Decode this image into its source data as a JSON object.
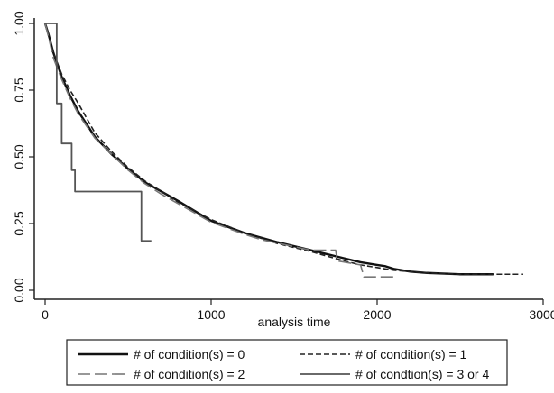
{
  "chart_data": {
    "type": "line",
    "title": "",
    "xlabel": "analysis time",
    "ylabel": "",
    "xlim": [
      0,
      3000
    ],
    "ylim": [
      0,
      1
    ],
    "grid": false,
    "legend_position": "bottom",
    "x_ticks": [
      "0",
      "1000",
      "2000",
      "3000"
    ],
    "y_ticks": [
      "0.00",
      "0.25",
      "0.50",
      "0.75",
      "1.00"
    ],
    "series": [
      {
        "name": "# of condition(s) = 0",
        "color": "#111111",
        "style": "solid-thick",
        "x": [
          0,
          20,
          50,
          100,
          150,
          200,
          300,
          400,
          500,
          600,
          700,
          800,
          1000,
          1200,
          1400,
          1600,
          1700,
          1800,
          1900,
          2000,
          2050,
          2100,
          2150,
          2200,
          2300,
          2500,
          2700
        ],
        "y": [
          1.0,
          0.96,
          0.89,
          0.8,
          0.73,
          0.67,
          0.575,
          0.51,
          0.455,
          0.405,
          0.37,
          0.335,
          0.26,
          0.215,
          0.18,
          0.15,
          0.135,
          0.12,
          0.105,
          0.095,
          0.09,
          0.08,
          0.075,
          0.07,
          0.065,
          0.06,
          0.06
        ]
      },
      {
        "name": "# of condition(s) = 1",
        "color": "#222222",
        "style": "short-dash",
        "x": [
          0,
          20,
          50,
          100,
          150,
          200,
          300,
          400,
          500,
          600,
          700,
          800,
          1000,
          1200,
          1400,
          1600,
          1800,
          1900,
          2000,
          2100,
          2200,
          2300,
          2500,
          2700,
          2880
        ],
        "y": [
          1.0,
          0.96,
          0.89,
          0.81,
          0.75,
          0.7,
          0.59,
          0.52,
          0.46,
          0.41,
          0.37,
          0.33,
          0.265,
          0.215,
          0.175,
          0.145,
          0.11,
          0.095,
          0.085,
          0.075,
          0.07,
          0.065,
          0.06,
          0.06,
          0.06
        ]
      },
      {
        "name": "# of condition(s) = 2",
        "color": "#777777",
        "style": "long-dash",
        "x": [
          0,
          20,
          50,
          100,
          150,
          200,
          300,
          400,
          500,
          600,
          700,
          800,
          1000,
          1200,
          1300,
          1450,
          1600,
          1750,
          1760,
          1900,
          1920,
          2000,
          2100,
          2120
        ],
        "y": [
          1.0,
          0.95,
          0.87,
          0.79,
          0.72,
          0.66,
          0.57,
          0.51,
          0.45,
          0.4,
          0.36,
          0.325,
          0.255,
          0.21,
          0.19,
          0.17,
          0.15,
          0.15,
          0.11,
          0.095,
          0.05,
          0.05,
          0.05,
          0.05
        ]
      },
      {
        "name": "# of condtion(s) = 3 or 4",
        "color": "#555555",
        "style": "step-solid",
        "step": true,
        "x": [
          0,
          70,
          100,
          160,
          180,
          580,
          640
        ],
        "y": [
          1.0,
          0.7,
          0.55,
          0.45,
          0.37,
          0.185,
          0.185
        ]
      }
    ]
  }
}
